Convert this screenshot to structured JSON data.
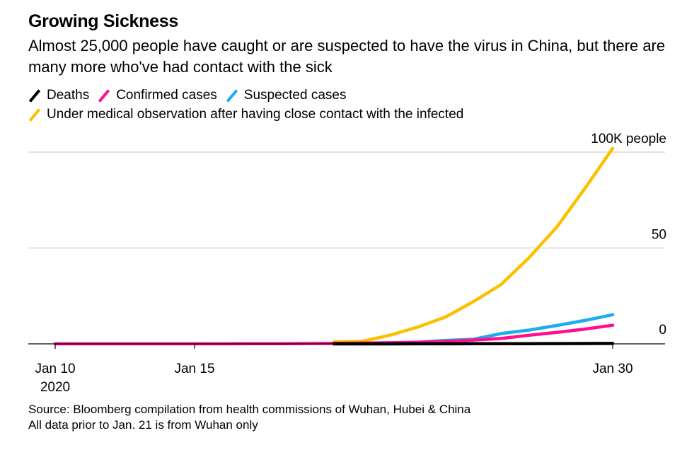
{
  "title": "Growing Sickness",
  "subtitle": "Almost 25,000 people have caught or are suspected to have the virus in China, but there are many more who've had contact with the sick",
  "legend": [
    {
      "name": "Deaths",
      "color": "#000000"
    },
    {
      "name": "Confirmed cases",
      "color": "#ff0f8f"
    },
    {
      "name": "Suspected cases",
      "color": "#1aaeef"
    },
    {
      "name": "Under medical observation after having close contact with the infected",
      "color": "#fcc000"
    }
  ],
  "source": {
    "line1": "Source: Bloomberg compilation from health commissions of Wuhan, Hubei & China",
    "line2": "All data prior to Jan. 21 is from Wuhan only"
  },
  "chart_data": {
    "type": "line",
    "title": "Growing Sickness",
    "xlabel": "",
    "ylabel": "Thousand people",
    "x": [
      "Jan 10",
      "Jan 11",
      "Jan 12",
      "Jan 13",
      "Jan 14",
      "Jan 15",
      "Jan 16",
      "Jan 17",
      "Jan 18",
      "Jan 19",
      "Jan 20",
      "Jan 21",
      "Jan 22",
      "Jan 23",
      "Jan 24",
      "Jan 25",
      "Jan 26",
      "Jan 27",
      "Jan 28",
      "Jan 29",
      "Jan 30"
    ],
    "x_ticks": [
      {
        "index": 0,
        "label": "Jan 10",
        "sublabel": "2020"
      },
      {
        "index": 5,
        "label": "Jan 15"
      },
      {
        "index": 20,
        "label": "Jan 30"
      }
    ],
    "y_ticks": [
      {
        "value": 0,
        "label": "0"
      },
      {
        "value": 50,
        "label": "50"
      },
      {
        "value": 100,
        "label": "100K people"
      }
    ],
    "ylim": [
      0,
      100
    ],
    "y_axis_position": "right",
    "grid": true,
    "legend_position": "top-left",
    "series": [
      {
        "name": "Under medical observation after having close contact with the infected",
        "color": "#fcc000",
        "values": [
          null,
          null,
          null,
          null,
          null,
          null,
          null,
          null,
          null,
          null,
          1.0,
          1.3,
          4.5,
          8.7,
          14.0,
          22.0,
          31.0,
          45.0,
          61.0,
          81.0,
          102.0
        ]
      },
      {
        "name": "Suspected cases",
        "color": "#1aaeef",
        "values": [
          null,
          null,
          null,
          null,
          null,
          null,
          null,
          null,
          null,
          null,
          0.1,
          0.2,
          0.4,
          0.8,
          1.8,
          2.4,
          5.4,
          7.2,
          9.6,
          12.2,
          15.2
        ]
      },
      {
        "name": "Confirmed cases",
        "color": "#ff0f8f",
        "values": [
          0.04,
          0.04,
          0.04,
          0.04,
          0.04,
          0.04,
          0.05,
          0.06,
          0.1,
          0.2,
          0.3,
          0.4,
          0.6,
          0.8,
          1.3,
          2.0,
          2.8,
          4.5,
          6.0,
          7.7,
          9.7
        ]
      },
      {
        "name": "Deaths",
        "color": "#000000",
        "values": [
          null,
          null,
          null,
          null,
          null,
          null,
          null,
          null,
          null,
          null,
          0.006,
          0.009,
          0.017,
          0.025,
          0.041,
          0.056,
          0.08,
          0.106,
          0.132,
          0.17,
          0.213
        ]
      }
    ]
  }
}
